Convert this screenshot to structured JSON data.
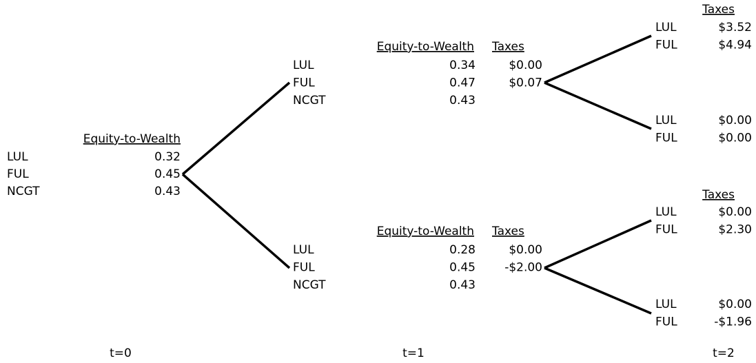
{
  "t0": {
    "header": "Equity-to-Wealth",
    "rows": [
      {
        "label": "LUL",
        "ew": "0.32"
      },
      {
        "label": "FUL",
        "ew": "0.45"
      },
      {
        "label": "NCGT",
        "ew": "0.43"
      }
    ]
  },
  "t1": [
    {
      "ew_header": "Equity-to-Wealth",
      "taxes_header": "Taxes",
      "rows": [
        {
          "label": "LUL",
          "ew": "0.34",
          "taxes": "$0.00"
        },
        {
          "label": "FUL",
          "ew": "0.47",
          "taxes": "$0.07"
        },
        {
          "label": "NCGT",
          "ew": "0.43"
        }
      ]
    },
    {
      "ew_header": "Equity-to-Wealth",
      "taxes_header": "Taxes",
      "rows": [
        {
          "label": "LUL",
          "ew": "0.28",
          "taxes": "$0.00"
        },
        {
          "label": "FUL",
          "ew": "0.45",
          "taxes": "-$2.00"
        },
        {
          "label": "NCGT",
          "ew": "0.43"
        }
      ]
    }
  ],
  "t2": [
    {
      "header": "Taxes",
      "branches": [
        [
          {
            "label": "LUL",
            "taxes": "$3.52"
          },
          {
            "label": "FUL",
            "taxes": "$4.94"
          }
        ],
        [
          {
            "label": "LUL",
            "taxes": "$0.00"
          },
          {
            "label": "FUL",
            "taxes": "$0.00"
          }
        ]
      ]
    },
    {
      "header": "Taxes",
      "branches": [
        [
          {
            "label": "LUL",
            "taxes": "$0.00"
          },
          {
            "label": "FUL",
            "taxes": "$2.30"
          }
        ],
        [
          {
            "label": "LUL",
            "taxes": "$0.00"
          },
          {
            "label": "FUL",
            "taxes": "-$1.96"
          }
        ]
      ]
    }
  ],
  "time_labels": [
    "t=0",
    "t=1",
    "t=2"
  ]
}
